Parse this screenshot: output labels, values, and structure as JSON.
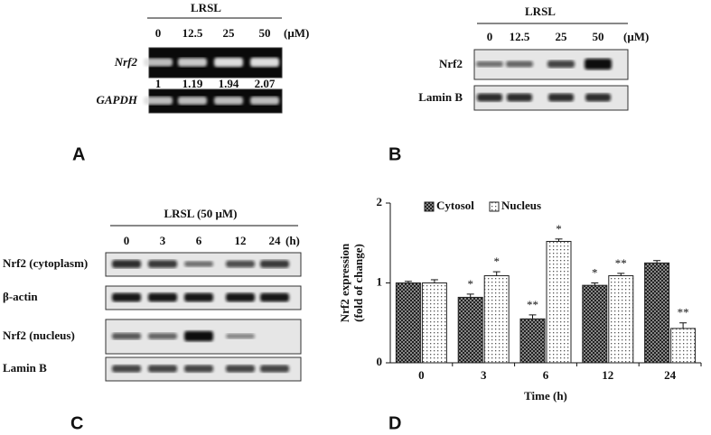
{
  "panels": {
    "a": {
      "letter": "A",
      "title": "LRSL",
      "lanes": [
        "0",
        "12.5",
        "25",
        "50"
      ],
      "unit": "(μM)",
      "rows": [
        "Nrf2",
        "GAPDH"
      ],
      "ratios": [
        1,
        1.19,
        1.94,
        2.07
      ]
    },
    "b": {
      "letter": "B",
      "title": "LRSL",
      "lanes": [
        "0",
        "12.5",
        "25",
        "50"
      ],
      "unit": "(μM)",
      "rows": [
        "Nrf2",
        "Lamin B"
      ]
    },
    "c": {
      "letter": "C",
      "title": "LRSL (50 μM)",
      "lanes": [
        "0",
        "3",
        "6",
        "12",
        "24"
      ],
      "unit": "(h)",
      "rows": [
        "Nrf2 (cytoplasm)",
        "β-actin",
        "Nrf2 (nucleus)",
        "Lamin B"
      ]
    }
  },
  "chart_data": {
    "type": "bar",
    "panel_letter": "D",
    "ylabel": [
      "Nrf2 expression",
      "(fold of change)"
    ],
    "xlabel": "Time (h)",
    "categories": [
      "0",
      "3",
      "6",
      "12",
      "24"
    ],
    "series": [
      {
        "name": "Cytosol",
        "color": "#333333",
        "values": [
          1.0,
          0.82,
          0.55,
          0.97,
          1.25
        ],
        "errors": [
          0.02,
          0.04,
          0.05,
          0.03,
          0.03
        ],
        "significance": [
          null,
          "*",
          "**",
          "*",
          null
        ]
      },
      {
        "name": "Nucleus",
        "color": "#ffffff",
        "values": [
          1.0,
          1.09,
          1.52,
          1.09,
          0.43
        ],
        "errors": [
          0.04,
          0.05,
          0.03,
          0.03,
          0.07
        ],
        "significance": [
          null,
          "*",
          "*",
          "**",
          "**"
        ]
      }
    ],
    "ylim": [
      0,
      2
    ],
    "yticks": [
      0,
      1,
      2
    ],
    "grid": false
  }
}
